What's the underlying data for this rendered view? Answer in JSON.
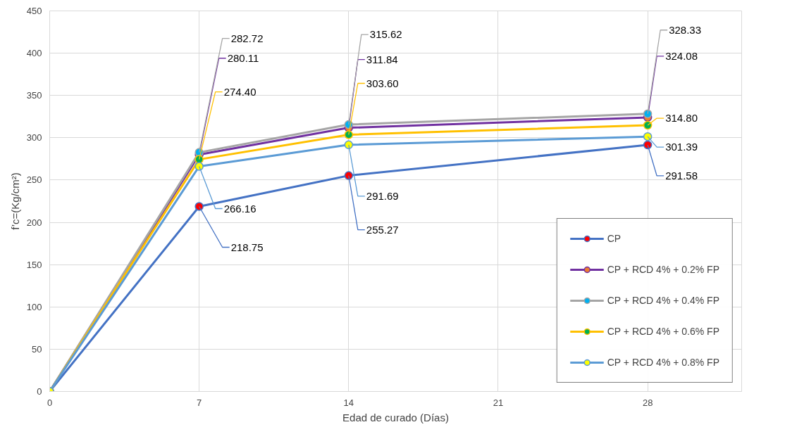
{
  "chart_data": {
    "type": "line",
    "xlabel": "Edad de curado (Días)",
    "ylabel": "f’c=(Kg/cm²)",
    "x": [
      0,
      7,
      14,
      28
    ],
    "xlim": [
      0,
      32.4
    ],
    "xticks": [
      0,
      7,
      14,
      21,
      28
    ],
    "ylim": [
      0,
      450
    ],
    "yticks": [
      0,
      50,
      100,
      150,
      200,
      250,
      300,
      350,
      400,
      450
    ],
    "grid": true,
    "legend": "bottom right",
    "marker": "circle",
    "line_style": "solid",
    "series": [
      {
        "name": "CP",
        "color": "#4472c4",
        "values": [
          0,
          218.75,
          255.27,
          291.58
        ],
        "value_labels": [
          null,
          "218.75",
          "255.27",
          "291.58"
        ]
      },
      {
        "name": "CP + RCD 4% + 0.2% FP",
        "color": "#7030a0",
        "values": [
          0,
          280.11,
          311.84,
          324.08
        ],
        "value_labels": [
          null,
          "280.11",
          "311.84",
          "324.08"
        ]
      },
      {
        "name": "CP + RCD 4% + 0.4% FP",
        "color": "#a5a5a5",
        "values": [
          0,
          282.72,
          315.62,
          328.33
        ],
        "value_labels": [
          null,
          "282.72",
          "315.62",
          "328.33"
        ]
      },
      {
        "name": "CP + RCD 4% + 0.6% FP",
        "color": "#ffc000",
        "values": [
          0,
          274.4,
          303.6,
          314.8
        ],
        "value_labels": [
          null,
          "274.40",
          "303.60",
          "314.80"
        ]
      },
      {
        "name": "CP + RCD 4% + 0.8% FP",
        "color": "#5b9bd5",
        "values": [
          0,
          266.16,
          291.69,
          301.39
        ],
        "value_labels": [
          null,
          "266.16",
          "291.69",
          "301.39"
        ]
      }
    ]
  }
}
